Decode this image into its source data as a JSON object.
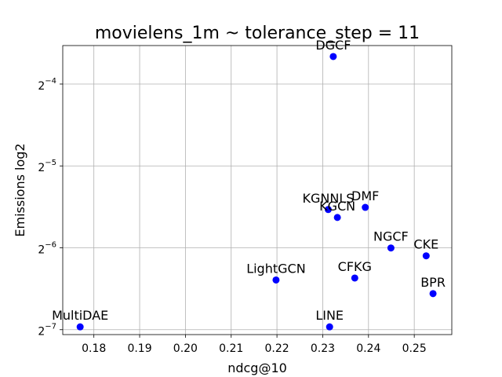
{
  "chart_data": {
    "type": "scatter",
    "title": "movielens_1m ~ tolerance_step = 11",
    "xlabel": "ndcg@10",
    "ylabel": "Emissions log2",
    "y_scale": "log2",
    "xlim": [
      0.1732,
      0.2582
    ],
    "ylim_exponent": [
      -7.06,
      -3.53
    ],
    "grid": true,
    "point_color": "#0000ff",
    "x_ticks": [
      "0.18",
      "0.19",
      "0.20",
      "0.21",
      "0.22",
      "0.23",
      "0.24",
      "0.25"
    ],
    "x_tick_values": [
      0.18,
      0.19,
      0.2,
      0.21,
      0.22,
      0.23,
      0.24,
      0.25
    ],
    "y_ticks": [
      {
        "base": "2",
        "exponent": "−4",
        "value": -4
      },
      {
        "base": "2",
        "exponent": "−5",
        "value": -5
      },
      {
        "base": "2",
        "exponent": "−6",
        "value": -6
      },
      {
        "base": "2",
        "exponent": "−7",
        "value": -7
      }
    ],
    "points": [
      {
        "label": "DGCF",
        "x": 0.2323,
        "y": 0.0789
      },
      {
        "label": "DMF",
        "x": 0.2393,
        "y": 0.022
      },
      {
        "label": "KGNNLS",
        "x": 0.2312,
        "y": 0.0216
      },
      {
        "label": "KGCN",
        "x": 0.2332,
        "y": 0.0202
      },
      {
        "label": "NGCF",
        "x": 0.2449,
        "y": 0.0156
      },
      {
        "label": "CKE",
        "x": 0.2526,
        "y": 0.0146
      },
      {
        "label": "CFKG",
        "x": 0.237,
        "y": 0.0121
      },
      {
        "label": "LightGCN",
        "x": 0.2198,
        "y": 0.0119
      },
      {
        "label": "BPR",
        "x": 0.2541,
        "y": 0.0106
      },
      {
        "label": "MultiDAE",
        "x": 0.177,
        "y": 0.008
      },
      {
        "label": "LINE",
        "x": 0.2315,
        "y": 0.008
      }
    ]
  }
}
